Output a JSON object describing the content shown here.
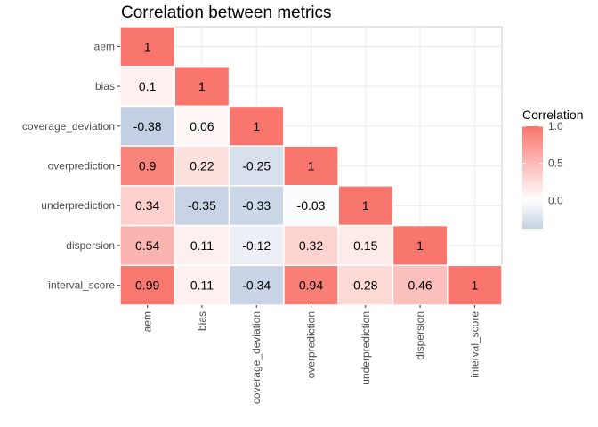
{
  "chart_data": {
    "type": "heatmap",
    "title": "Correlation between metrics",
    "xlabel": "",
    "ylabel": "",
    "variables": [
      "aem",
      "bias",
      "coverage_deviation",
      "overprediction",
      "underprediction",
      "dispersion",
      "interval_score"
    ],
    "x_tick_labels": [
      "aem",
      "bias",
      "coverage_deviation",
      "overprediction",
      "underprediction",
      "dispersion",
      "interval_score"
    ],
    "y_tick_labels": [
      "aem",
      "bias",
      "coverage_deviation",
      "overprediction",
      "underprediction",
      "dispersion",
      "interval_score"
    ],
    "matrix_lower": [
      [
        1
      ],
      [
        0.1,
        1
      ],
      [
        -0.38,
        0.06,
        1
      ],
      [
        0.9,
        0.22,
        -0.25,
        1
      ],
      [
        0.34,
        -0.35,
        -0.33,
        -0.03,
        1
      ],
      [
        0.54,
        0.11,
        -0.12,
        0.32,
        0.15,
        1
      ],
      [
        0.99,
        0.11,
        -0.34,
        0.94,
        0.28,
        0.46,
        1
      ]
    ],
    "legend": {
      "title": "Correlation",
      "position": "right",
      "breaks": [
        1.0,
        0.5,
        0.0
      ],
      "break_labels": [
        "1.0",
        "0.5",
        "0.0"
      ],
      "limits": [
        -0.38,
        1.0
      ]
    },
    "colors": {
      "high": "#f8766d",
      "mid": "#ffffff",
      "low": "#c3d0e3",
      "panel_border": "#cccccc"
    },
    "grid": true
  }
}
